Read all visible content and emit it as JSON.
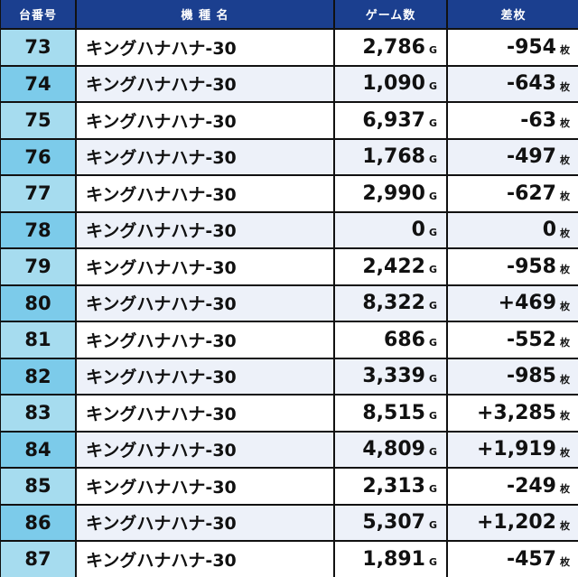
{
  "header": {
    "number": "台番号",
    "model": "機 種 名",
    "games": "ゲーム数",
    "diff": "差枚"
  },
  "units": {
    "games": "G",
    "diff": "枚"
  },
  "colors": {
    "header_bg": "#1b3f8f",
    "num_odd": "#a6dcef",
    "num_even": "#7ccbea",
    "row_even": "#edf1f9"
  },
  "rows": [
    {
      "number": "73",
      "model": "キングハナハナ-30",
      "games": "2,786",
      "diff": "-954"
    },
    {
      "number": "74",
      "model": "キングハナハナ-30",
      "games": "1,090",
      "diff": "-643"
    },
    {
      "number": "75",
      "model": "キングハナハナ-30",
      "games": "6,937",
      "diff": "-63"
    },
    {
      "number": "76",
      "model": "キングハナハナ-30",
      "games": "1,768",
      "diff": "-497"
    },
    {
      "number": "77",
      "model": "キングハナハナ-30",
      "games": "2,990",
      "diff": "-627"
    },
    {
      "number": "78",
      "model": "キングハナハナ-30",
      "games": "0",
      "diff": "0"
    },
    {
      "number": "79",
      "model": "キングハナハナ-30",
      "games": "2,422",
      "diff": "-958"
    },
    {
      "number": "80",
      "model": "キングハナハナ-30",
      "games": "8,322",
      "diff": "+469"
    },
    {
      "number": "81",
      "model": "キングハナハナ-30",
      "games": "686",
      "diff": "-552"
    },
    {
      "number": "82",
      "model": "キングハナハナ-30",
      "games": "3,339",
      "diff": "-985"
    },
    {
      "number": "83",
      "model": "キングハナハナ-30",
      "games": "8,515",
      "diff": "+3,285"
    },
    {
      "number": "84",
      "model": "キングハナハナ-30",
      "games": "4,809",
      "diff": "+1,919"
    },
    {
      "number": "85",
      "model": "キングハナハナ-30",
      "games": "2,313",
      "diff": "-249"
    },
    {
      "number": "86",
      "model": "キングハナハナ-30",
      "games": "5,307",
      "diff": "+1,202"
    },
    {
      "number": "87",
      "model": "キングハナハナ-30",
      "games": "1,891",
      "diff": "-457"
    }
  ]
}
